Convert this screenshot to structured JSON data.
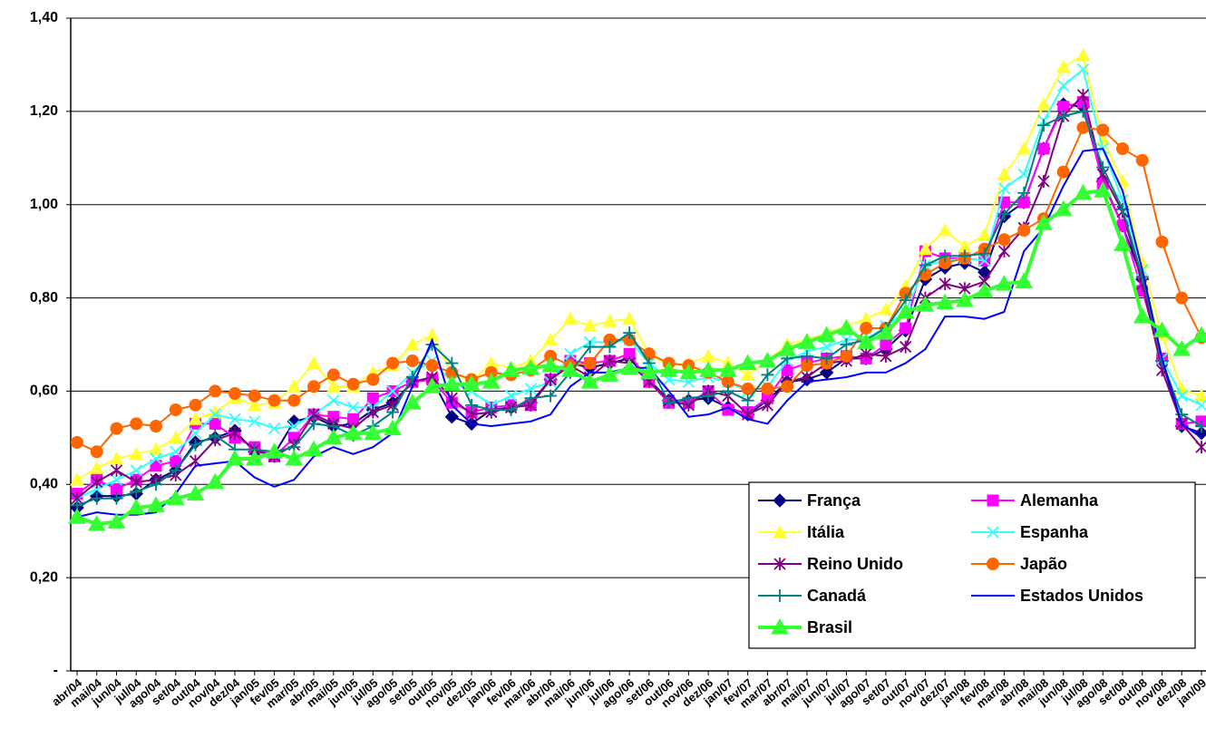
{
  "chart_data": {
    "type": "line",
    "categories": [
      "abr/04",
      "mai/04",
      "jun/04",
      "jul/04",
      "ago/04",
      "set/04",
      "out/04",
      "nov/04",
      "dez/04",
      "jan/05",
      "fev/05",
      "mar/05",
      "abr/05",
      "mai/05",
      "jun/05",
      "jul/05",
      "ago/05",
      "set/05",
      "out/05",
      "nov/05",
      "dez/05",
      "jan/06",
      "fev/06",
      "mar/06",
      "abr/06",
      "mai/06",
      "jun/06",
      "jul/06",
      "ago/06",
      "set/06",
      "out/06",
      "nov/06",
      "dez/06",
      "jan/07",
      "fev/07",
      "mar/07",
      "abr/07",
      "mai/07",
      "jun/07",
      "jul/07",
      "ago/07",
      "set/07",
      "out/07",
      "nov/07",
      "dez/07",
      "jan/08",
      "fev/08",
      "mar/08",
      "abr/08",
      "mai/08",
      "jun/08",
      "jul/08",
      "ago/08",
      "set/08",
      "out/08",
      "nov/08",
      "dez/08",
      "jan/09"
    ],
    "ylim": [
      0,
      1.4
    ],
    "yticks": [
      {
        "value": 0,
        "label": "-"
      },
      {
        "value": 0.2,
        "label": "0,20"
      },
      {
        "value": 0.4,
        "label": "0,40"
      },
      {
        "value": 0.6,
        "label": "0,60"
      },
      {
        "value": 0.8,
        "label": "0,80"
      },
      {
        "value": 1.0,
        "label": "1,00"
      },
      {
        "value": 1.2,
        "label": "1,20"
      },
      {
        "value": 1.4,
        "label": "1,40"
      }
    ],
    "grid": true,
    "legend": "lower right",
    "series": [
      {
        "name": "França",
        "color": "#000080",
        "marker": "diamond",
        "line_width": 2,
        "values": [
          0.35,
          0.375,
          0.375,
          0.38,
          0.41,
          0.43,
          0.49,
          0.5,
          0.515,
          0.47,
          0.465,
          0.535,
          0.545,
          0.525,
          0.53,
          0.56,
          0.575,
          0.62,
          0.625,
          0.545,
          0.53,
          0.56,
          0.565,
          0.575,
          0.625,
          0.66,
          0.65,
          0.66,
          0.67,
          0.625,
          0.58,
          0.58,
          0.585,
          0.565,
          0.55,
          0.58,
          0.62,
          0.625,
          0.64,
          0.67,
          0.67,
          0.69,
          0.73,
          0.84,
          0.865,
          0.875,
          0.855,
          0.975,
          1.005,
          1.12,
          1.215,
          1.21,
          1.05,
          0.955,
          0.84,
          0.665,
          0.525,
          0.51
        ]
      },
      {
        "name": "Alemanha",
        "color": "#ff00ff",
        "marker": "square",
        "line_width": 2,
        "values": [
          0.38,
          0.41,
          0.39,
          0.41,
          0.44,
          0.45,
          0.53,
          0.53,
          0.5,
          0.48,
          0.46,
          0.5,
          0.55,
          0.545,
          0.54,
          0.585,
          0.6,
          0.62,
          0.625,
          0.575,
          0.555,
          0.565,
          0.57,
          0.57,
          0.625,
          0.665,
          0.66,
          0.665,
          0.68,
          0.62,
          0.575,
          0.575,
          0.6,
          0.56,
          0.555,
          0.585,
          0.645,
          0.66,
          0.67,
          0.675,
          0.67,
          0.7,
          0.735,
          0.9,
          0.885,
          0.885,
          0.88,
          1.005,
          1.005,
          1.12,
          1.21,
          1.22,
          1.045,
          0.955,
          0.815,
          0.67,
          0.53,
          0.535
        ]
      },
      {
        "name": "Itália",
        "color": "#ffff33",
        "marker": "triangle",
        "line_width": 2,
        "values": [
          0.41,
          0.435,
          0.455,
          0.465,
          0.475,
          0.5,
          0.54,
          0.555,
          0.585,
          0.57,
          0.575,
          0.61,
          0.66,
          0.61,
          0.61,
          0.64,
          0.655,
          0.7,
          0.72,
          0.64,
          0.62,
          0.66,
          0.65,
          0.665,
          0.71,
          0.755,
          0.74,
          0.75,
          0.755,
          0.68,
          0.655,
          0.66,
          0.675,
          0.66,
          0.635,
          0.665,
          0.7,
          0.71,
          0.725,
          0.74,
          0.755,
          0.775,
          0.825,
          0.905,
          0.945,
          0.91,
          0.935,
          1.065,
          1.12,
          1.215,
          1.295,
          1.32,
          1.14,
          1.05,
          0.875,
          0.72,
          0.605,
          0.59
        ]
      },
      {
        "name": "Espanha",
        "color": "#33ffff",
        "marker": "x",
        "line_width": 2,
        "values": [
          0.37,
          0.39,
          0.41,
          0.43,
          0.455,
          0.47,
          0.51,
          0.55,
          0.54,
          0.535,
          0.52,
          0.525,
          0.55,
          0.58,
          0.565,
          0.565,
          0.6,
          0.64,
          0.665,
          0.62,
          0.6,
          0.57,
          0.59,
          0.605,
          0.62,
          0.68,
          0.705,
          0.705,
          0.71,
          0.66,
          0.625,
          0.62,
          0.63,
          0.62,
          0.6,
          0.61,
          0.665,
          0.685,
          0.695,
          0.71,
          0.71,
          0.74,
          0.77,
          0.87,
          0.88,
          0.885,
          0.88,
          1.035,
          1.065,
          1.18,
          1.255,
          1.29,
          1.12,
          1.01,
          0.86,
          0.67,
          0.59,
          0.57
        ]
      },
      {
        "name": "Reino Unido",
        "color": "#800080",
        "marker": "asterisk",
        "line_width": 2,
        "values": [
          0.37,
          0.405,
          0.43,
          0.405,
          0.41,
          0.42,
          0.45,
          0.495,
          0.51,
          0.475,
          0.46,
          0.485,
          0.55,
          0.53,
          0.52,
          0.555,
          0.57,
          0.62,
          0.63,
          0.585,
          0.55,
          0.555,
          0.565,
          0.57,
          0.625,
          0.655,
          0.63,
          0.665,
          0.66,
          0.62,
          0.58,
          0.57,
          0.6,
          0.59,
          0.55,
          0.57,
          0.62,
          0.63,
          0.66,
          0.665,
          0.68,
          0.675,
          0.695,
          0.8,
          0.83,
          0.82,
          0.835,
          0.9,
          0.95,
          1.05,
          1.19,
          1.235,
          1.065,
          0.985,
          0.83,
          0.645,
          0.53,
          0.48
        ]
      },
      {
        "name": "Japão",
        "color": "#ff6600",
        "marker": "circle",
        "line_width": 2,
        "values": [
          0.49,
          0.47,
          0.52,
          0.53,
          0.525,
          0.56,
          0.57,
          0.6,
          0.595,
          0.59,
          0.58,
          0.58,
          0.61,
          0.635,
          0.615,
          0.625,
          0.66,
          0.665,
          0.655,
          0.64,
          0.625,
          0.64,
          0.635,
          0.645,
          0.675,
          0.655,
          0.66,
          0.71,
          0.71,
          0.68,
          0.66,
          0.655,
          0.64,
          0.62,
          0.605,
          0.605,
          0.61,
          0.655,
          0.66,
          0.675,
          0.735,
          0.735,
          0.81,
          0.85,
          0.875,
          0.885,
          0.905,
          0.925,
          0.945,
          0.97,
          1.07,
          1.165,
          1.16,
          1.12,
          1.095,
          0.92,
          0.8,
          0.715
        ]
      },
      {
        "name": "Canadá",
        "color": "#008080",
        "marker": "plus",
        "line_width": 2,
        "values": [
          0.355,
          0.37,
          0.37,
          0.385,
          0.4,
          0.43,
          0.485,
          0.505,
          0.475,
          0.475,
          0.47,
          0.48,
          0.53,
          0.525,
          0.505,
          0.525,
          0.555,
          0.63,
          0.7,
          0.66,
          0.57,
          0.56,
          0.56,
          0.585,
          0.59,
          0.64,
          0.695,
          0.695,
          0.725,
          0.66,
          0.575,
          0.585,
          0.59,
          0.6,
          0.58,
          0.635,
          0.67,
          0.675,
          0.67,
          0.7,
          0.71,
          0.735,
          0.795,
          0.87,
          0.89,
          0.89,
          0.895,
          0.98,
          1.025,
          1.17,
          1.19,
          1.2,
          1.08,
          0.99,
          0.845,
          0.665,
          0.55,
          0.525
        ]
      },
      {
        "name": "Estados Unidos",
        "color": "#0000ff",
        "marker": "none",
        "line_width": 2,
        "values": [
          0.33,
          0.34,
          0.335,
          0.335,
          0.34,
          0.38,
          0.44,
          0.445,
          0.45,
          0.415,
          0.395,
          0.41,
          0.46,
          0.48,
          0.465,
          0.48,
          0.51,
          0.61,
          0.71,
          0.57,
          0.53,
          0.525,
          0.53,
          0.535,
          0.55,
          0.61,
          0.64,
          0.64,
          0.65,
          0.65,
          0.6,
          0.545,
          0.55,
          0.565,
          0.54,
          0.53,
          0.58,
          0.62,
          0.625,
          0.63,
          0.64,
          0.64,
          0.66,
          0.69,
          0.76,
          0.76,
          0.755,
          0.77,
          0.9,
          0.95,
          1.04,
          1.115,
          1.12,
          1.03,
          0.86,
          0.67,
          0.53,
          0.5
        ]
      },
      {
        "name": "Brasil",
        "color": "#33ff33",
        "marker": "big-triangle",
        "line_width": 4,
        "values": [
          0.33,
          0.315,
          0.32,
          0.35,
          0.355,
          0.37,
          0.38,
          0.405,
          0.455,
          0.455,
          0.47,
          0.455,
          0.475,
          0.5,
          0.51,
          0.51,
          0.52,
          0.575,
          0.61,
          0.615,
          0.615,
          0.62,
          0.645,
          0.65,
          0.655,
          0.645,
          0.62,
          0.635,
          0.65,
          0.64,
          0.645,
          0.64,
          0.645,
          0.645,
          0.66,
          0.665,
          0.69,
          0.705,
          0.72,
          0.735,
          0.705,
          0.725,
          0.77,
          0.785,
          0.79,
          0.795,
          0.815,
          0.83,
          0.835,
          0.96,
          0.99,
          1.025,
          1.03,
          0.915,
          0.76,
          0.73,
          0.69,
          0.72
        ]
      }
    ]
  }
}
